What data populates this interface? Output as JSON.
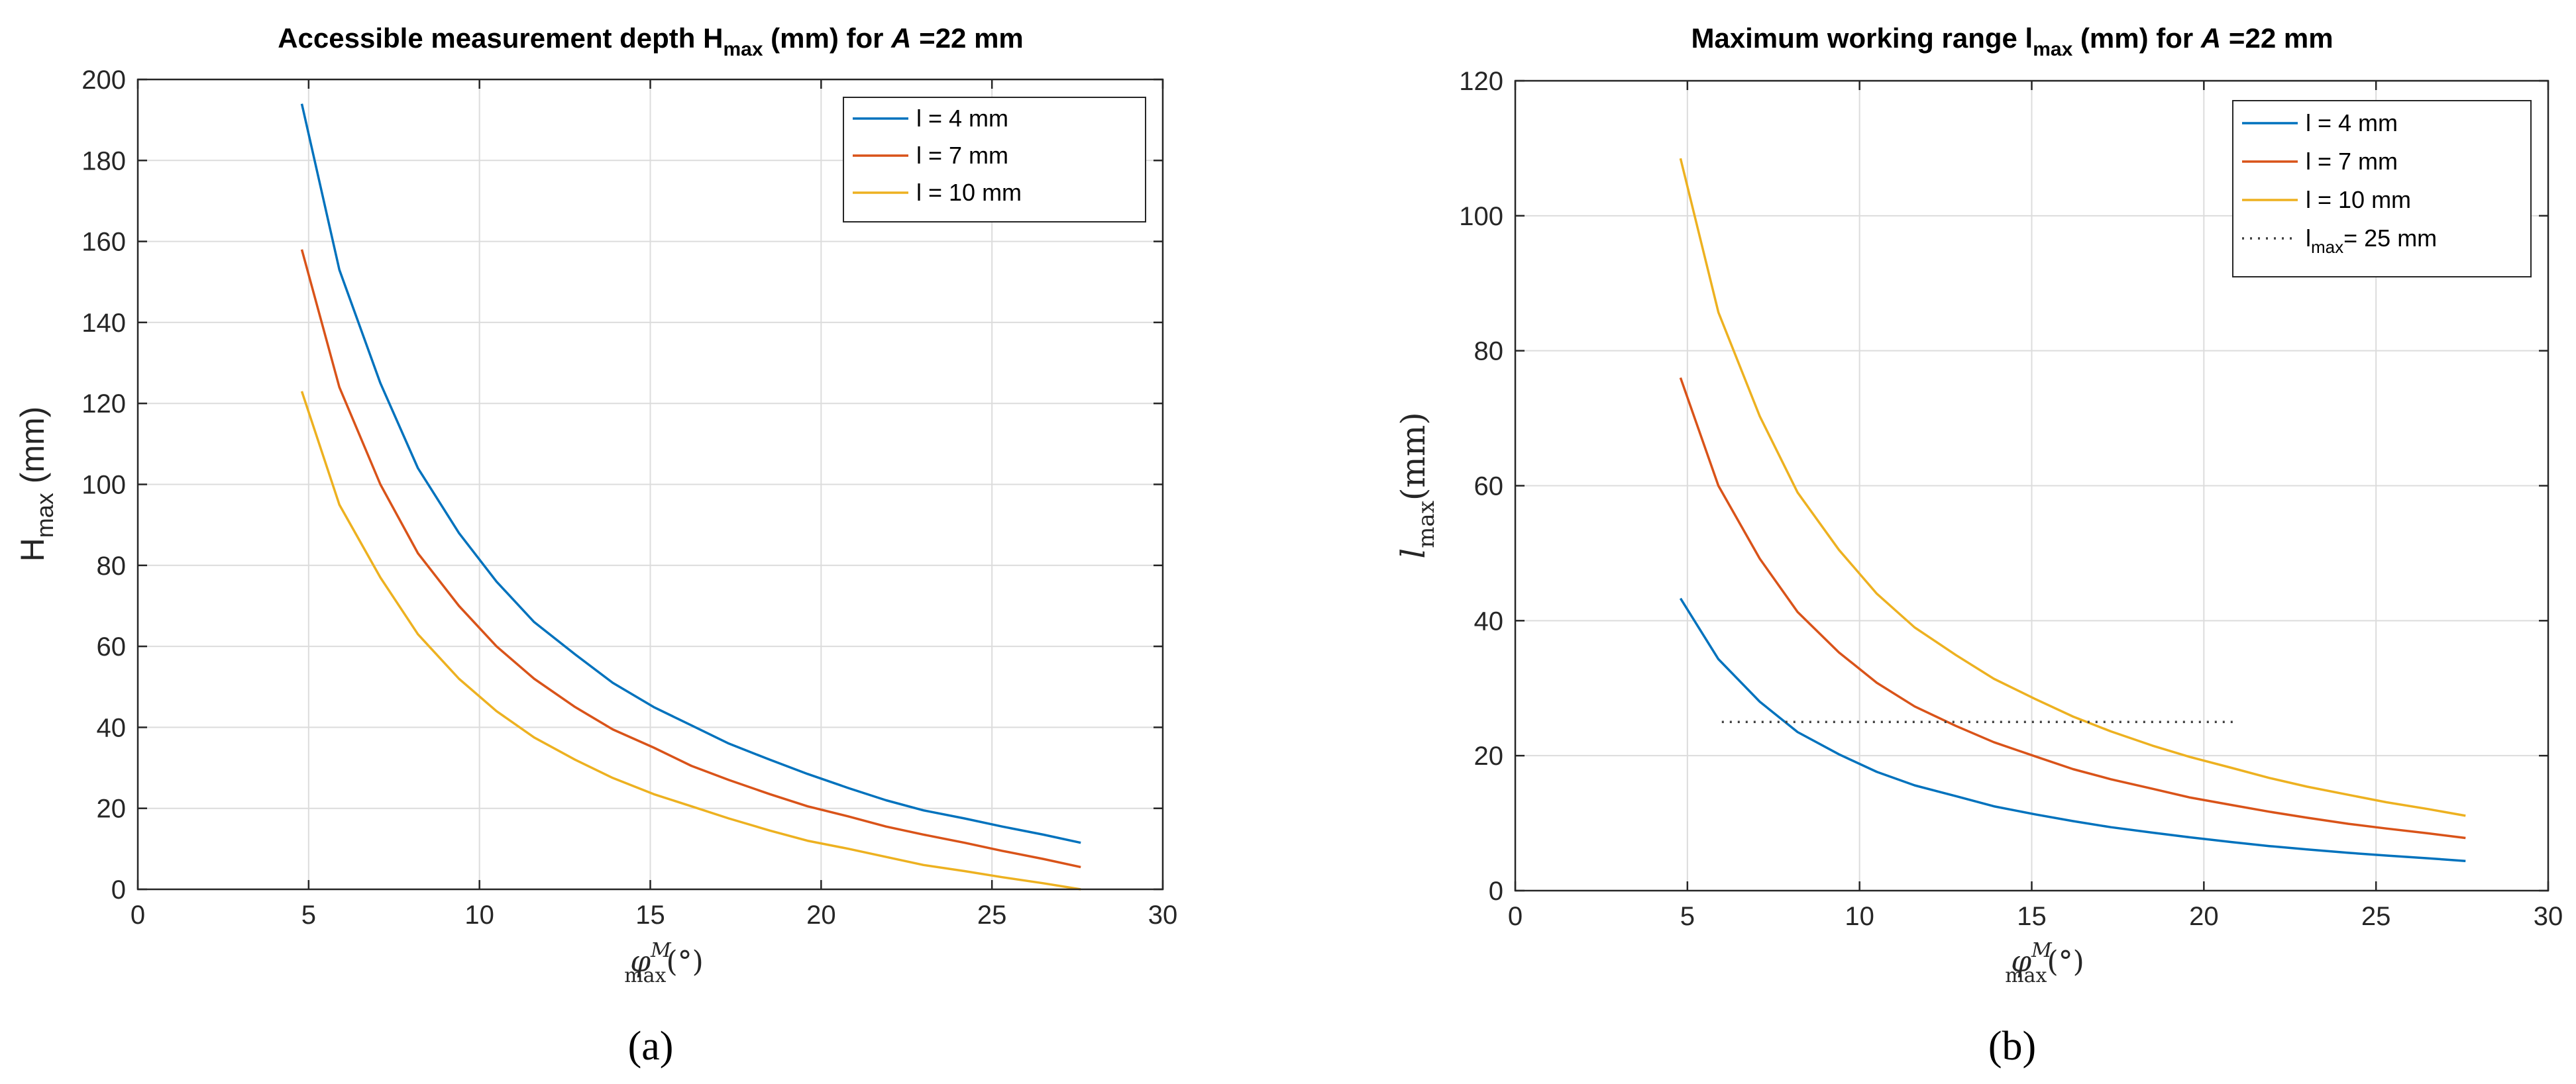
{
  "chart_data": [
    {
      "type": "line",
      "title": {
        "prefix": "Accessible measurement depth H",
        "sub": "max",
        "mid": " (mm) for ",
        "var": "A",
        "suffix": " =22 mm"
      },
      "ylabel": {
        "main": "H",
        "sub": "max",
        "rest": " (mm)"
      },
      "xlabel": {
        "sym": "φ",
        "sup": "M",
        "sub": "max",
        "unit": "(°)"
      },
      "panel_label": "(a)",
      "xlim": [
        0,
        30
      ],
      "ylim": [
        0,
        200
      ],
      "xticks": [
        0,
        5,
        10,
        15,
        20,
        25,
        30
      ],
      "yticks": [
        0,
        20,
        40,
        60,
        80,
        100,
        120,
        140,
        160,
        180,
        200
      ],
      "legend_position": "top-right",
      "series": [
        {
          "name": "l = 4 mm",
          "color": "#0072BD",
          "x": [
            4.8,
            5.9,
            7.1,
            8.2,
            9.4,
            10.5,
            11.6,
            12.8,
            13.9,
            15.1,
            16.2,
            17.3,
            18.5,
            19.6,
            20.8,
            21.9,
            23.0,
            24.2,
            25.3,
            26.5,
            27.6
          ],
          "y": [
            194,
            153,
            125,
            104,
            88,
            76,
            66,
            58,
            51,
            45,
            40.5,
            36,
            32,
            28.5,
            25,
            22,
            19.5,
            17.5,
            15.5,
            13.5,
            11.5
          ]
        },
        {
          "name": "l = 7 mm",
          "color": "#D95319",
          "x": [
            4.8,
            5.9,
            7.1,
            8.2,
            9.4,
            10.5,
            11.6,
            12.8,
            13.9,
            15.1,
            16.2,
            17.3,
            18.5,
            19.6,
            20.8,
            21.9,
            23.0,
            24.2,
            25.3,
            26.5,
            27.6
          ],
          "y": [
            158,
            124,
            100,
            83,
            70,
            60,
            52,
            45,
            39.5,
            35,
            30.5,
            27,
            23.5,
            20.5,
            18,
            15.5,
            13.5,
            11.5,
            9.5,
            7.5,
            5.5
          ]
        },
        {
          "name": "l = 10 mm",
          "color": "#EDB120",
          "x": [
            4.8,
            5.9,
            7.1,
            8.2,
            9.4,
            10.5,
            11.6,
            12.8,
            13.9,
            15.1,
            16.2,
            17.3,
            18.5,
            19.6,
            20.8,
            21.9,
            23.0,
            24.2,
            25.3,
            26.5,
            27.6
          ],
          "y": [
            123,
            95,
            77,
            63,
            52,
            44,
            37.5,
            32,
            27.5,
            23.5,
            20.5,
            17.5,
            14.5,
            12,
            10,
            8,
            6,
            4.5,
            3,
            1.5,
            0
          ]
        }
      ]
    },
    {
      "type": "line",
      "title": {
        "prefix": "Maximum working range l",
        "sub": "max",
        "mid": " (mm) for ",
        "var": "A",
        "suffix": " =22 mm"
      },
      "ylabel": {
        "main": "l",
        "sub": "max",
        "rest": "(mm)"
      },
      "xlabel": {
        "sym": "φ",
        "sup": "M",
        "sub": "max",
        "unit": "(°)"
      },
      "panel_label": "(b)",
      "xlim": [
        0,
        30
      ],
      "ylim": [
        0,
        120
      ],
      "xticks": [
        0,
        5,
        10,
        15,
        20,
        25,
        30
      ],
      "yticks": [
        0,
        20,
        40,
        60,
        80,
        100,
        120
      ],
      "legend_position": "top-right",
      "series": [
        {
          "name": "l = 4 mm",
          "color": "#0072BD",
          "x": [
            4.8,
            5.9,
            7.1,
            8.2,
            9.4,
            10.5,
            11.6,
            12.8,
            13.9,
            15.1,
            16.2,
            17.3,
            18.5,
            19.6,
            20.8,
            21.9,
            23.0,
            24.2,
            25.3,
            26.5,
            27.6
          ],
          "y": [
            43.3,
            34.3,
            28,
            23.5,
            20.2,
            17.6,
            15.6,
            14,
            12.5,
            11.3,
            10.3,
            9.4,
            8.6,
            7.9,
            7.2,
            6.6,
            6.1,
            5.6,
            5.2,
            4.8,
            4.4
          ]
        },
        {
          "name": "l = 7 mm",
          "color": "#D95319",
          "x": [
            4.8,
            5.9,
            7.1,
            8.2,
            9.4,
            10.5,
            11.6,
            12.8,
            13.9,
            15.1,
            16.2,
            17.3,
            18.5,
            19.6,
            20.8,
            21.9,
            23.0,
            24.2,
            25.3,
            26.5,
            27.6
          ],
          "y": [
            76,
            60,
            49.2,
            41.3,
            35.3,
            30.8,
            27.3,
            24.4,
            22,
            19.9,
            18,
            16.5,
            15.1,
            13.8,
            12.7,
            11.7,
            10.8,
            9.9,
            9.2,
            8.5,
            7.8
          ]
        },
        {
          "name": "l = 10 mm",
          "color": "#EDB120",
          "x": [
            4.8,
            5.9,
            7.1,
            8.2,
            9.4,
            10.5,
            11.6,
            12.8,
            13.9,
            15.1,
            16.2,
            17.3,
            18.5,
            19.6,
            20.8,
            21.9,
            23.0,
            24.2,
            25.3,
            26.5,
            27.6
          ],
          "y": [
            108.5,
            85.7,
            70.3,
            59,
            50.5,
            44,
            39,
            34.9,
            31.4,
            28.4,
            25.8,
            23.6,
            21.5,
            19.8,
            18.2,
            16.7,
            15.4,
            14.2,
            13.1,
            12.1,
            11.1
          ]
        },
        {
          "name": "max",
          "label_prefix": "l",
          "label_suffix": "= 25 mm",
          "color": "#404040",
          "style": "dotted",
          "x": [
            6,
            21
          ],
          "y": [
            25,
            25
          ]
        }
      ]
    }
  ]
}
